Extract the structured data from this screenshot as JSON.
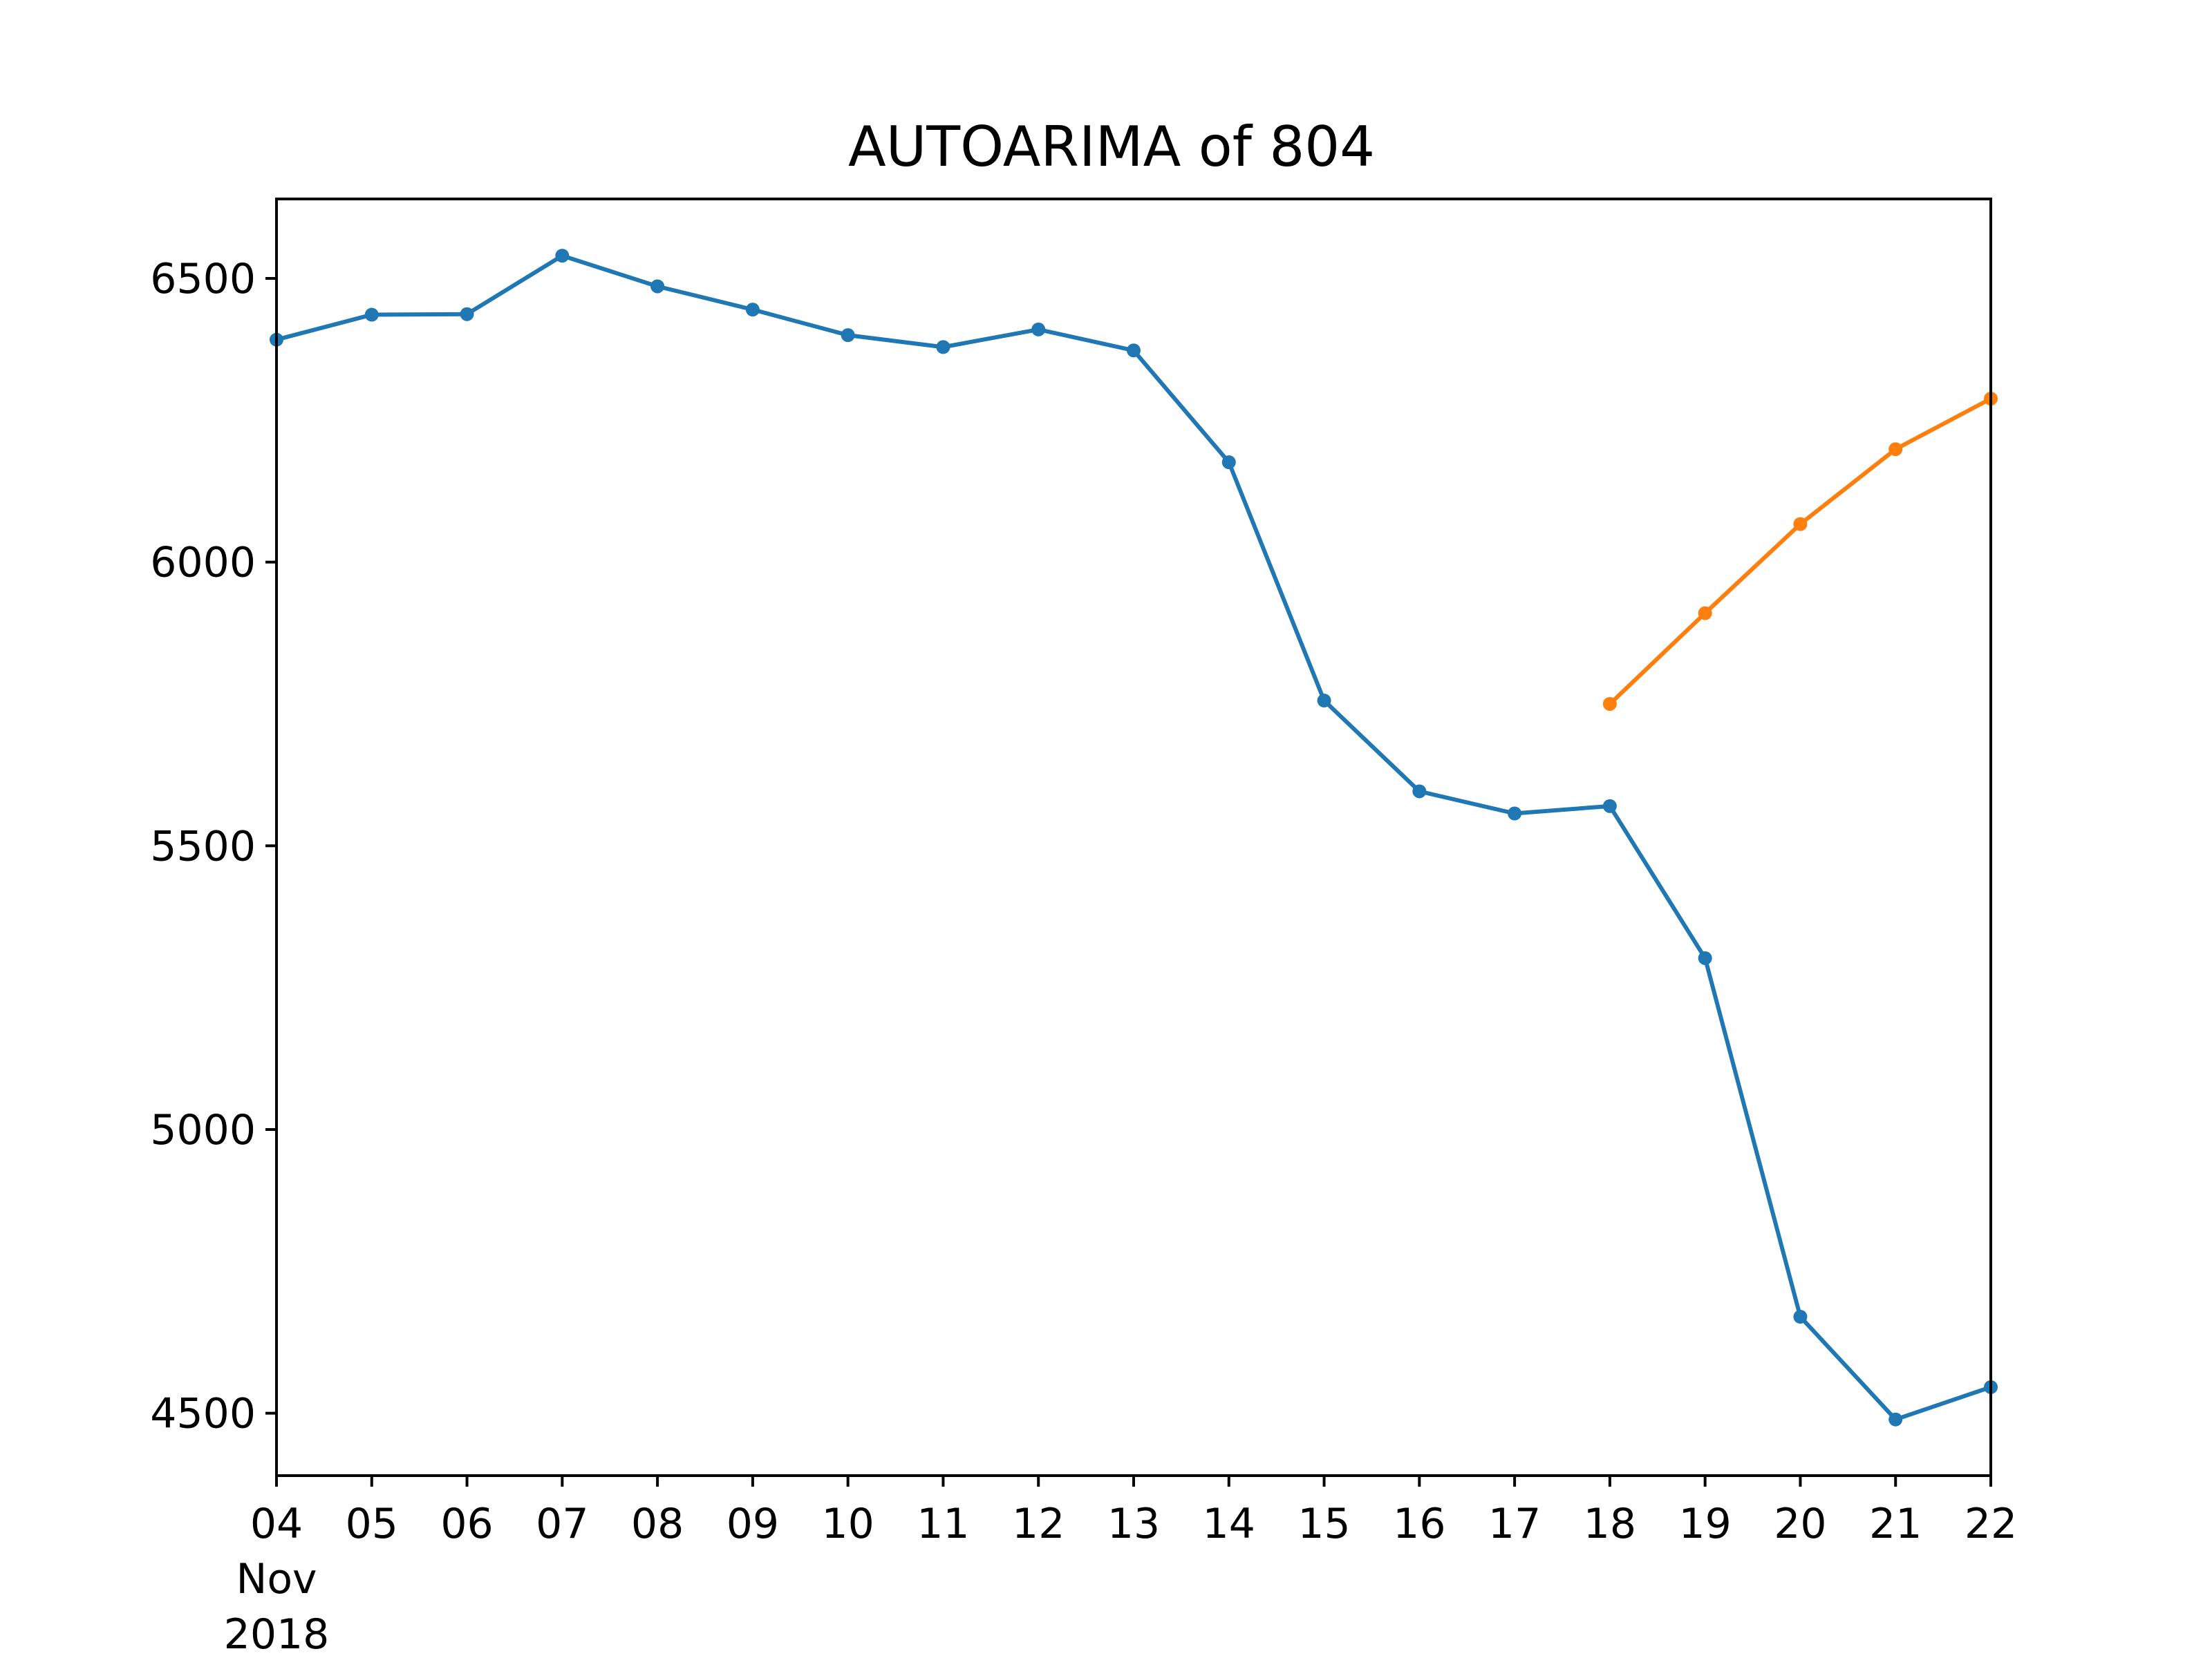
{
  "chart_data": {
    "type": "line",
    "title": "AUTOARIMA of 804",
    "xlabel": "",
    "ylabel": "",
    "x": [
      "2018-11-04",
      "2018-11-05",
      "2018-11-06",
      "2018-11-07",
      "2018-11-08",
      "2018-11-09",
      "2018-11-10",
      "2018-11-11",
      "2018-11-12",
      "2018-11-13",
      "2018-11-14",
      "2018-11-15",
      "2018-11-16",
      "2018-11-17",
      "2018-11-18",
      "2018-11-19",
      "2018-11-20",
      "2018-11-21",
      "2018-11-22"
    ],
    "x_tick_labels": [
      "04",
      "05",
      "06",
      "07",
      "08",
      "09",
      "10",
      "11",
      "12",
      "13",
      "14",
      "15",
      "16",
      "17",
      "18",
      "19",
      "20",
      "21",
      "22"
    ],
    "x_tick_sublabels": [
      "Nov",
      "2018"
    ],
    "ylim": [
      4390,
      6640
    ],
    "yticks": [
      4500,
      5000,
      5500,
      6000,
      6500
    ],
    "grid": false,
    "series": [
      {
        "color": "#1f77b4",
        "x": [
          "2018-11-04",
          "2018-11-05",
          "2018-11-06",
          "2018-11-07",
          "2018-11-08",
          "2018-11-09",
          "2018-11-10",
          "2018-11-11",
          "2018-11-12",
          "2018-11-13",
          "2018-11-14",
          "2018-11-15",
          "2018-11-16",
          "2018-11-17",
          "2018-11-18",
          "2018-11-19",
          "2018-11-20",
          "2018-11-21",
          "2018-11-22"
        ],
        "values": [
          6392,
          6436,
          6437,
          6540,
          6486,
          6445,
          6400,
          6379,
          6410,
          6373,
          6176,
          5756,
          5596,
          5557,
          5570,
          5302,
          4670,
          4489,
          4546
        ]
      },
      {
        "color": "#ff7f0e",
        "x": [
          "2018-11-18",
          "2018-11-19",
          "2018-11-20",
          "2018-11-21",
          "2018-11-22"
        ],
        "values": [
          5750,
          5910,
          6067,
          6199,
          6288
        ]
      }
    ]
  }
}
